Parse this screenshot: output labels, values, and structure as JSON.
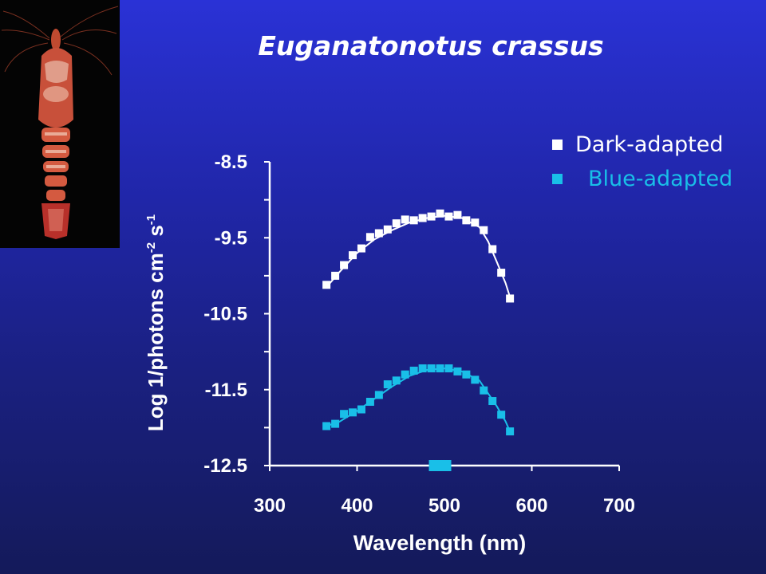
{
  "colors": {
    "dark_adapted": "#ffffff",
    "blue_adapted": "#19bfe8"
  },
  "photo": {
    "icon": "shrimp-photo"
  },
  "chart_data": {
    "type": "scatter",
    "title": "Euganatonotus crassus",
    "xlabel": "Wavelength (nm)",
    "ylabel": "Log 1/photons cm",
    "ylabel_sup1": "-2",
    "ylabel_s": " s",
    "ylabel_sup2": "-1",
    "xlim": [
      300,
      700
    ],
    "ylim": [
      -12.5,
      -8.5
    ],
    "x_ticks": [
      300,
      400,
      500,
      600,
      700
    ],
    "x_tick_labels": [
      "300",
      "400",
      "500",
      "600",
      "700"
    ],
    "y_ticks": [
      -8.5,
      -9.5,
      -10.5,
      -11.5,
      -12.5
    ],
    "y_tick_labels": [
      "-8.5",
      "-9.5",
      "-10.5",
      "-11.5",
      "-12.5"
    ],
    "legend_position": "top-right",
    "series": [
      {
        "name": "Dark-adapted",
        "x": [
          365,
          375,
          385,
          395,
          405,
          415,
          425,
          435,
          445,
          455,
          465,
          475,
          485,
          495,
          505,
          515,
          525,
          535,
          545,
          555,
          565,
          575
        ],
        "y": [
          -10.12,
          -10.0,
          -9.86,
          -9.73,
          -9.64,
          -9.49,
          -9.44,
          -9.39,
          -9.31,
          -9.26,
          -9.27,
          -9.24,
          -9.22,
          -9.18,
          -9.22,
          -9.2,
          -9.27,
          -9.3,
          -9.4,
          -9.65,
          -9.96,
          -10.3
        ],
        "fit": {
          "x": [
            365,
            380,
            400,
            420,
            440,
            460,
            480,
            500,
            520,
            540,
            550,
            560,
            570,
            575
          ],
          "y": [
            -10.15,
            -9.95,
            -9.7,
            -9.52,
            -9.4,
            -9.3,
            -9.24,
            -9.21,
            -9.24,
            -9.36,
            -9.55,
            -9.82,
            -10.1,
            -10.28
          ]
        }
      },
      {
        "name": "Blue-adapted",
        "x": [
          365,
          375,
          385,
          395,
          405,
          415,
          425,
          435,
          445,
          455,
          465,
          475,
          485,
          495,
          505,
          515,
          525,
          535,
          545,
          555,
          565,
          575
        ],
        "y": [
          -11.98,
          -11.95,
          -11.82,
          -11.8,
          -11.76,
          -11.66,
          -11.57,
          -11.43,
          -11.38,
          -11.3,
          -11.25,
          -11.22,
          -11.22,
          -11.22,
          -11.22,
          -11.26,
          -11.3,
          -11.37,
          -11.51,
          -11.65,
          -11.83,
          -12.05
        ],
        "fit": {
          "x": [
            365,
            380,
            400,
            420,
            440,
            460,
            480,
            500,
            520,
            540,
            550,
            560,
            570,
            575
          ],
          "y": [
            -11.98,
            -11.92,
            -11.78,
            -11.62,
            -11.46,
            -11.32,
            -11.24,
            -11.22,
            -11.26,
            -11.38,
            -11.55,
            -11.72,
            -11.92,
            -12.05
          ]
        }
      }
    ],
    "marker_on_axis": {
      "x": 495,
      "label": ""
    }
  }
}
